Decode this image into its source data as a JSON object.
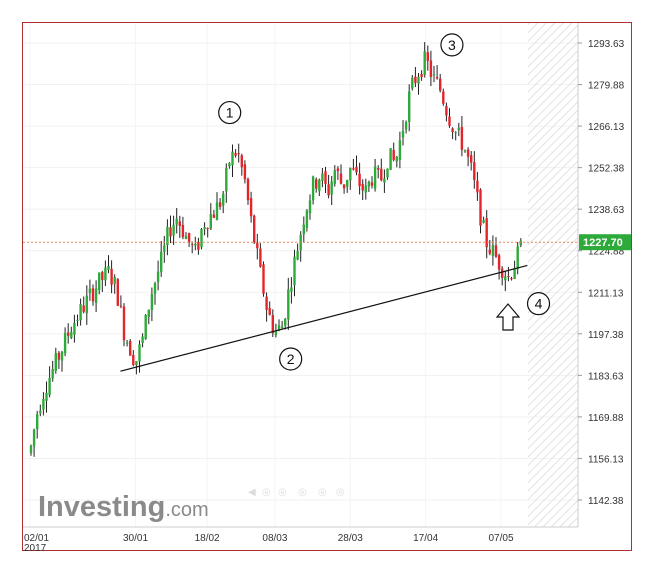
{
  "chart_data": {
    "type": "candlestick",
    "title": "",
    "xlabel": "",
    "ylabel": "",
    "ylim": [
      1135,
      1300
    ],
    "y_ticks": [
      "1293.63",
      "1279.88",
      "1266.13",
      "1252.38",
      "1238.63",
      "1224.88",
      "1211.13",
      "1197.38",
      "1183.63",
      "1169.88",
      "1156.13",
      "1142.38"
    ],
    "x_ticks": [
      {
        "label": "02/01",
        "sublabel": "2017",
        "date": "2017-01-02"
      },
      {
        "label": "30/01",
        "date": "2017-01-30"
      },
      {
        "label": "18/02",
        "date": "2017-02-18"
      },
      {
        "label": "08/03",
        "date": "2017-03-08"
      },
      {
        "label": "28/03",
        "date": "2017-03-28"
      },
      {
        "label": "17/04",
        "date": "2017-04-17"
      },
      {
        "label": "07/05",
        "date": "2017-05-07"
      }
    ],
    "current_price": {
      "value": 1227.7,
      "label": "1227.70",
      "color": "#2eaa3a"
    },
    "up_color": "#2eaa3a",
    "down_color": "#e3242b",
    "trendline": {
      "start": {
        "date": "2017-01-26",
        "value": 1185
      },
      "end": {
        "date": "2017-05-14",
        "value": 1220
      }
    },
    "points": [
      {
        "n": "1",
        "date": "2017-02-24",
        "value": 1262
      },
      {
        "n": "2",
        "date": "2017-03-09",
        "value": 1197
      },
      {
        "n": "3",
        "date": "2017-04-20",
        "value": 1293
      },
      {
        "n": "4",
        "date": "2017-05-09",
        "value": 1212
      }
    ],
    "path": [
      [
        "2017-01-02",
        1158
      ],
      [
        "2017-01-04",
        1172
      ],
      [
        "2017-01-06",
        1180
      ],
      [
        "2017-01-09",
        1188
      ],
      [
        "2017-01-11",
        1194
      ],
      [
        "2017-01-13",
        1200
      ],
      [
        "2017-01-16",
        1206
      ],
      [
        "2017-01-18",
        1210
      ],
      [
        "2017-01-20",
        1214
      ],
      [
        "2017-01-23",
        1218
      ],
      [
        "2017-01-25",
        1212
      ],
      [
        "2017-01-27",
        1198
      ],
      [
        "2017-01-30",
        1188
      ],
      [
        "2017-02-01",
        1196
      ],
      [
        "2017-02-03",
        1210
      ],
      [
        "2017-02-06",
        1222
      ],
      [
        "2017-02-08",
        1232
      ],
      [
        "2017-02-10",
        1236
      ],
      [
        "2017-02-13",
        1228
      ],
      [
        "2017-02-15",
        1224
      ],
      [
        "2017-02-17",
        1234
      ],
      [
        "2017-02-20",
        1238
      ],
      [
        "2017-02-22",
        1242
      ],
      [
        "2017-02-24",
        1255
      ],
      [
        "2017-02-26",
        1258
      ],
      [
        "2017-02-28",
        1248
      ],
      [
        "2017-03-02",
        1232
      ],
      [
        "2017-03-04",
        1218
      ],
      [
        "2017-03-06",
        1205
      ],
      [
        "2017-03-08",
        1198
      ],
      [
        "2017-03-10",
        1200
      ],
      [
        "2017-03-12",
        1214
      ],
      [
        "2017-03-14",
        1226
      ],
      [
        "2017-03-16",
        1238
      ],
      [
        "2017-03-18",
        1246
      ],
      [
        "2017-03-20",
        1250
      ],
      [
        "2017-03-22",
        1244
      ],
      [
        "2017-03-24",
        1252
      ],
      [
        "2017-03-26",
        1246
      ],
      [
        "2017-03-28",
        1252
      ],
      [
        "2017-03-30",
        1248
      ],
      [
        "2017-04-01",
        1244
      ],
      [
        "2017-04-03",
        1250
      ],
      [
        "2017-04-05",
        1248
      ],
      [
        "2017-04-07",
        1256
      ],
      [
        "2017-04-09",
        1254
      ],
      [
        "2017-04-11",
        1266
      ],
      [
        "2017-04-13",
        1278
      ],
      [
        "2017-04-15",
        1284
      ],
      [
        "2017-04-17",
        1288
      ],
      [
        "2017-04-19",
        1282
      ],
      [
        "2017-04-21",
        1278
      ],
      [
        "2017-04-23",
        1270
      ],
      [
        "2017-04-25",
        1264
      ],
      [
        "2017-04-27",
        1260
      ],
      [
        "2017-04-29",
        1252
      ],
      [
        "2017-05-01",
        1240
      ],
      [
        "2017-05-03",
        1228
      ],
      [
        "2017-05-05",
        1224
      ],
      [
        "2017-05-07",
        1220
      ],
      [
        "2017-05-09",
        1216
      ],
      [
        "2017-05-11",
        1222
      ],
      [
        "2017-05-13",
        1227.7
      ]
    ]
  },
  "watermark": {
    "brand": "Investing",
    "suffix": ".com"
  }
}
